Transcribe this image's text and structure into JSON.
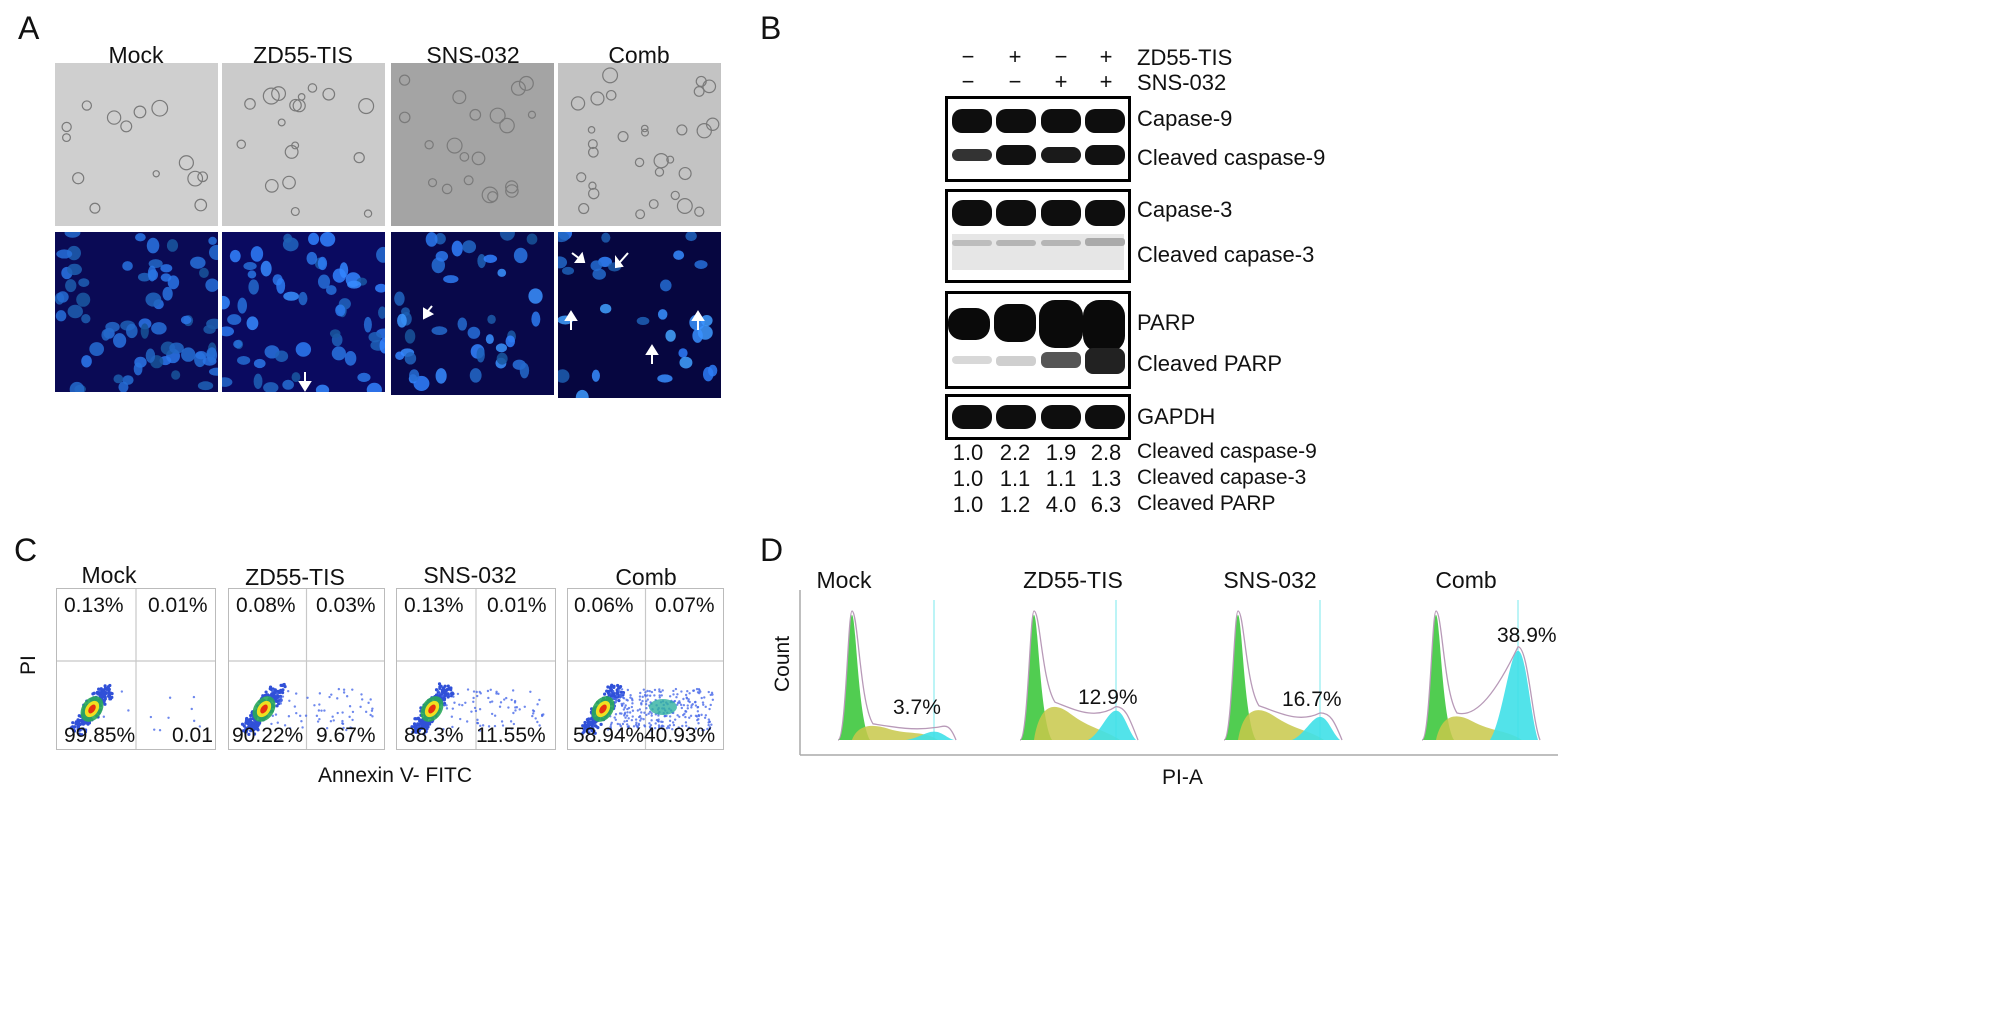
{
  "panel_a": {
    "letter": "A",
    "columns": [
      "Mock",
      "ZD55-TIS",
      "SNS-032",
      "Comb"
    ]
  },
  "panel_b": {
    "letter": "B",
    "treatments": [
      {
        "name": "ZD55-TIS",
        "signs": [
          "−",
          "+",
          "−",
          "+"
        ]
      },
      {
        "name": "SNS-032",
        "signs": [
          "−",
          "−",
          "+",
          "+"
        ]
      }
    ],
    "bands": [
      "Capase-9",
      "Cleaved caspase-9",
      "Capase-3",
      "Cleaved capase-3",
      "PARP",
      "Cleaved PARP",
      "GAPDH"
    ],
    "quantification": [
      {
        "label": "Cleaved caspase-9",
        "values": [
          "1.0",
          "2.2",
          "1.9",
          "2.8"
        ]
      },
      {
        "label": "Cleaved capase-3",
        "values": [
          "1.0",
          "1.1",
          "1.1",
          "1.3"
        ]
      },
      {
        "label": "Cleaved PARP",
        "values": [
          "1.0",
          "1.2",
          "4.0",
          "6.3"
        ]
      }
    ]
  },
  "panel_c": {
    "letter": "C",
    "x_label": "Annexin V- FITC",
    "y_label": "PI",
    "plots": [
      {
        "title": "Mock",
        "ul": "0.13%",
        "ur": "0.01%",
        "ll": "99.85%",
        "lr": "0.01",
        "spread": 0.02
      },
      {
        "title": "ZD55-TIS",
        "ul": "0.08%",
        "ur": "0.03%",
        "ll": "90.22%",
        "lr": "9.67%",
        "spread": 0.1
      },
      {
        "title": "SNS-032",
        "ul": "0.13%",
        "ur": "0.01%",
        "ll": "88.3%",
        "lr": "11.55%",
        "spread": 0.12
      },
      {
        "title": "Comb",
        "ul": "0.06%",
        "ur": "0.07%",
        "ll": "58.94%",
        "lr": "40.93%",
        "spread": 0.41
      }
    ]
  },
  "panel_d": {
    "letter": "D",
    "x_label": "PI-A",
    "y_label": "Count",
    "colors": {
      "g1": "#3ec83e",
      "s": "#c8c84a",
      "g2": "#3fe0e8",
      "outline": "#b89ab8"
    },
    "plots": [
      {
        "title": "Mock",
        "pct": "3.7%",
        "g2": 0.08,
        "s": 0.18
      },
      {
        "title": "ZD55-TIS",
        "pct": "12.9%",
        "g2": 0.28,
        "s": 0.42
      },
      {
        "title": "SNS-032",
        "pct": "16.7%",
        "g2": 0.22,
        "s": 0.38
      },
      {
        "title": "Comb",
        "pct": "38.9%",
        "g2": 0.85,
        "s": 0.3
      }
    ]
  }
}
